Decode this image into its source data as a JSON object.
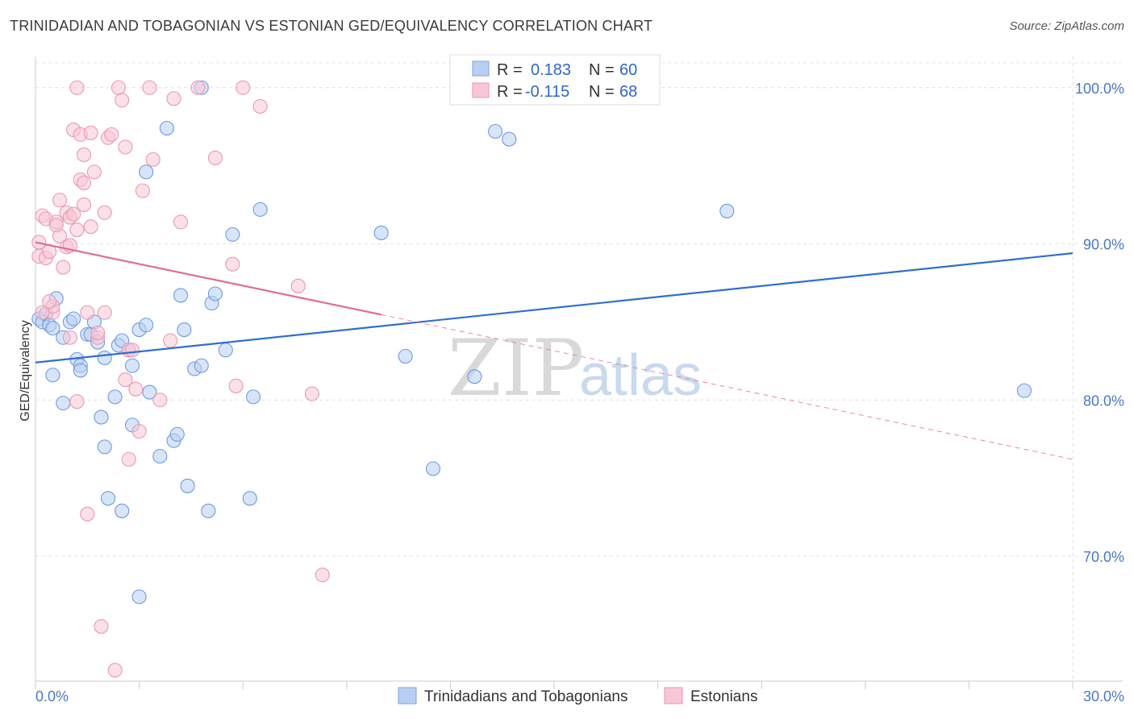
{
  "title": "TRINIDADIAN AND TOBAGONIAN VS ESTONIAN GED/EQUIVALENCY CORRELATION CHART",
  "source": "Source: ZipAtlas.com",
  "watermark": {
    "zip": "ZIP",
    "atlas": "atlas"
  },
  "legend": {
    "r_label": "R =",
    "n_label": "N =",
    "rows": [
      {
        "r": "0.183",
        "n": "60",
        "color": "#a9c4ef",
        "stroke": "#6f9ae0"
      },
      {
        "r": "-0.115",
        "n": "68",
        "color": "#f6b9cc",
        "stroke": "#e88aa8"
      }
    ]
  },
  "bottom_legend": [
    {
      "label": "Trinidadians and Tobagonians",
      "color": "#b8cff3",
      "stroke": "#7da3e0"
    },
    {
      "label": "Estonians",
      "color": "#f8c6d5",
      "stroke": "#e99ab3"
    }
  ],
  "chart_data": {
    "type": "scatter",
    "title": "TRINIDADIAN AND TOBAGONIAN VS ESTONIAN GED/EQUIVALENCY CORRELATION CHART",
    "xlabel": "",
    "ylabel": "GED/Equivalency",
    "xlim": [
      0,
      30
    ],
    "ylim": [
      62.0,
      102.0
    ],
    "x_tick_labels": [
      "0.0%",
      "30.0%"
    ],
    "y_ticks": [
      70,
      80,
      90,
      100
    ],
    "y_tick_labels": [
      "70.0%",
      "80.0%",
      "90.0%",
      "100.0%"
    ],
    "grid": true,
    "legend_position": "top-center",
    "series": [
      {
        "name": "Trinidadians and Tobagonians",
        "color": "#6f9ae0",
        "fill": "#b8cff3",
        "trend": {
          "x": [
            0,
            30
          ],
          "y": [
            82.4,
            89.4
          ],
          "style": "solid",
          "color": "#2f6fcf"
        },
        "points": [
          [
            0.1,
            85.2
          ],
          [
            0.2,
            85.0
          ],
          [
            0.3,
            85.5
          ],
          [
            0.4,
            84.8
          ],
          [
            0.5,
            84.6
          ],
          [
            0.6,
            86.5
          ],
          [
            0.5,
            81.6
          ],
          [
            0.8,
            84.0
          ],
          [
            0.8,
            79.8
          ],
          [
            1.0,
            85.0
          ],
          [
            1.1,
            85.2
          ],
          [
            1.2,
            82.6
          ],
          [
            1.3,
            82.2
          ],
          [
            1.3,
            81.9
          ],
          [
            1.5,
            84.2
          ],
          [
            1.6,
            84.2
          ],
          [
            1.7,
            85.0
          ],
          [
            1.8,
            83.7
          ],
          [
            1.9,
            78.9
          ],
          [
            2.0,
            82.7
          ],
          [
            2.0,
            77.0
          ],
          [
            2.1,
            73.7
          ],
          [
            2.3,
            80.2
          ],
          [
            2.4,
            83.5
          ],
          [
            2.5,
            83.8
          ],
          [
            2.5,
            72.9
          ],
          [
            2.7,
            83.2
          ],
          [
            2.8,
            82.2
          ],
          [
            2.8,
            78.4
          ],
          [
            3.0,
            67.4
          ],
          [
            3.0,
            84.5
          ],
          [
            3.2,
            84.8
          ],
          [
            3.2,
            94.6
          ],
          [
            3.3,
            80.5
          ],
          [
            3.6,
            76.4
          ],
          [
            3.8,
            97.4
          ],
          [
            4.0,
            77.4
          ],
          [
            4.1,
            77.8
          ],
          [
            4.2,
            86.7
          ],
          [
            4.3,
            84.5
          ],
          [
            4.4,
            74.5
          ],
          [
            4.6,
            82.0
          ],
          [
            4.8,
            82.2
          ],
          [
            4.8,
            100.0
          ],
          [
            5.0,
            72.9
          ],
          [
            5.1,
            86.2
          ],
          [
            5.2,
            86.8
          ],
          [
            5.5,
            83.2
          ],
          [
            5.7,
            90.6
          ],
          [
            6.2,
            73.7
          ],
          [
            6.3,
            80.2
          ],
          [
            6.5,
            92.2
          ],
          [
            10.0,
            90.7
          ],
          [
            10.7,
            82.8
          ],
          [
            11.5,
            75.6
          ],
          [
            12.7,
            81.5
          ],
          [
            13.3,
            97.2
          ],
          [
            13.7,
            96.7
          ],
          [
            20.0,
            92.1
          ],
          [
            28.6,
            80.6
          ]
        ]
      },
      {
        "name": "Estonians",
        "color": "#e99ab3",
        "fill": "#f8c6d5",
        "trend": {
          "x": [
            0,
            30
          ],
          "y": [
            90.1,
            76.2
          ],
          "solid_until_x": 10.0,
          "style": "solid-then-dashed",
          "color": "#e06c95"
        },
        "points": [
          [
            0.1,
            89.2
          ],
          [
            0.1,
            90.1
          ],
          [
            0.2,
            91.8
          ],
          [
            0.3,
            91.6
          ],
          [
            0.3,
            89.1
          ],
          [
            0.4,
            89.5
          ],
          [
            0.5,
            85.6
          ],
          [
            0.5,
            86.0
          ],
          [
            0.6,
            91.4
          ],
          [
            0.7,
            92.8
          ],
          [
            0.7,
            90.5
          ],
          [
            0.8,
            88.5
          ],
          [
            0.9,
            89.8
          ],
          [
            0.9,
            92.0
          ],
          [
            1.0,
            91.7
          ],
          [
            1.0,
            84.0
          ],
          [
            1.1,
            97.3
          ],
          [
            1.1,
            91.9
          ],
          [
            1.2,
            79.9
          ],
          [
            1.2,
            90.9
          ],
          [
            1.2,
            100.0
          ],
          [
            1.3,
            97.0
          ],
          [
            1.3,
            94.1
          ],
          [
            1.4,
            95.7
          ],
          [
            1.4,
            93.9
          ],
          [
            1.5,
            72.7
          ],
          [
            1.5,
            85.6
          ],
          [
            1.6,
            97.1
          ],
          [
            1.6,
            91.1
          ],
          [
            1.7,
            94.6
          ],
          [
            1.8,
            84.0
          ],
          [
            1.8,
            84.3
          ],
          [
            1.9,
            65.5
          ],
          [
            2.0,
            92.0
          ],
          [
            2.0,
            85.6
          ],
          [
            2.1,
            96.8
          ],
          [
            2.2,
            97.0
          ],
          [
            2.3,
            62.7
          ],
          [
            2.4,
            100.0
          ],
          [
            2.5,
            99.2
          ],
          [
            2.6,
            96.2
          ],
          [
            2.6,
            81.3
          ],
          [
            2.7,
            76.2
          ],
          [
            2.7,
            83.2
          ],
          [
            2.8,
            83.2
          ],
          [
            2.9,
            80.7
          ],
          [
            3.0,
            78.0
          ],
          [
            3.1,
            93.4
          ],
          [
            3.3,
            100.0
          ],
          [
            3.4,
            95.4
          ],
          [
            3.6,
            80.0
          ],
          [
            3.9,
            83.8
          ],
          [
            4.0,
            99.3
          ],
          [
            4.2,
            91.4
          ],
          [
            4.7,
            100.0
          ],
          [
            5.2,
            95.5
          ],
          [
            5.7,
            88.7
          ],
          [
            5.8,
            80.9
          ],
          [
            6.0,
            100.0
          ],
          [
            6.5,
            98.8
          ],
          [
            7.6,
            87.3
          ],
          [
            8.0,
            80.4
          ],
          [
            8.3,
            68.8
          ],
          [
            0.4,
            86.3
          ],
          [
            0.6,
            91.2
          ],
          [
            1.0,
            89.9
          ],
          [
            1.4,
            92.5
          ],
          [
            0.2,
            85.6
          ]
        ]
      }
    ]
  }
}
